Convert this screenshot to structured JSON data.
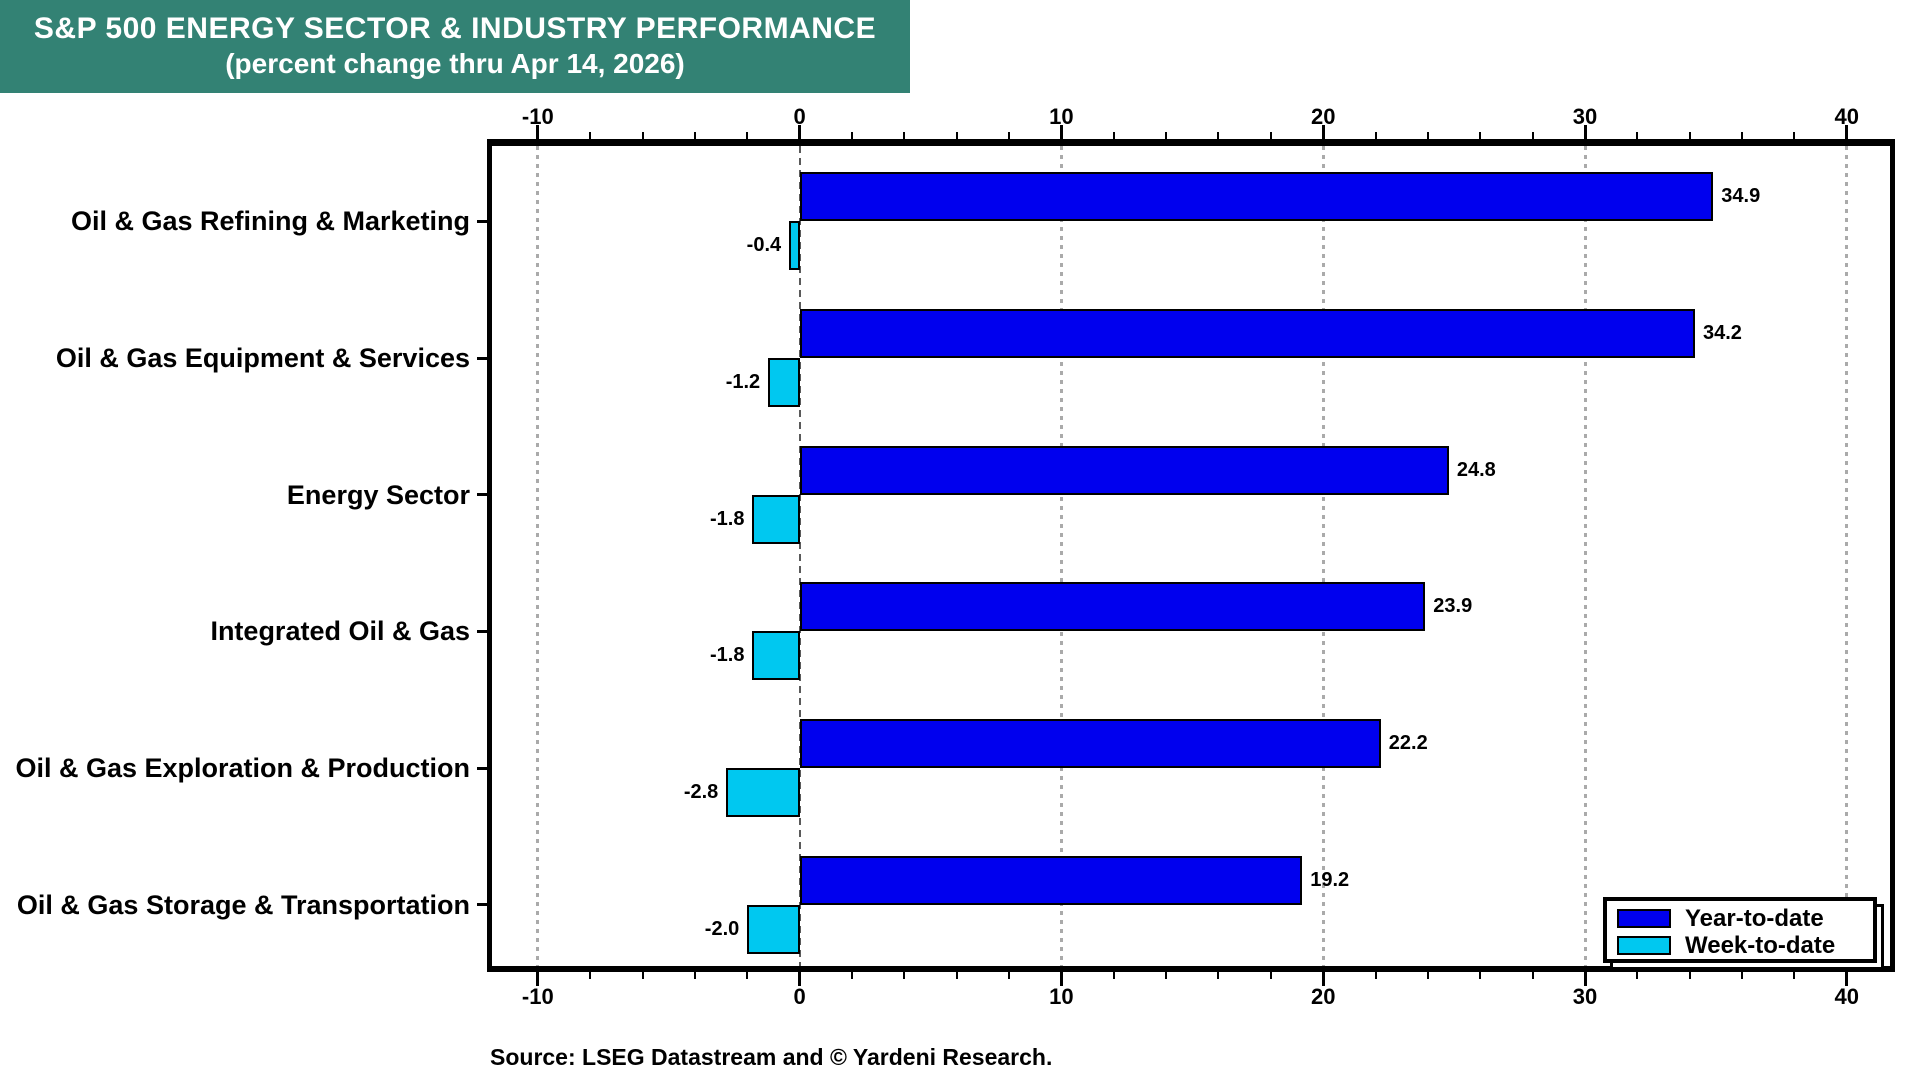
{
  "title": {
    "line1": "S&P 500 ENERGY SECTOR & INDUSTRY PERFORMANCE",
    "line2": "(percent change thru Apr 14, 2026)",
    "bg_color": "#338274",
    "text_color": "#ffffff"
  },
  "source_note": "Source: LSEG Datastream and © Yardeni Research.",
  "legend": {
    "position": "bottom-right-inside-plot",
    "items": [
      {
        "label": "Year-to-date",
        "color": "#0000EE"
      },
      {
        "label": "Week-to-date",
        "color": "#00C8F0"
      }
    ]
  },
  "chart_data": {
    "type": "bar",
    "orientation": "horizontal",
    "title": "S&P 500 ENERGY SECTOR & INDUSTRY PERFORMANCE (percent change thru Apr 14, 2026)",
    "categories": [
      "Oil & Gas Refining & Marketing",
      "Oil & Gas Equipment & Services",
      "Energy Sector",
      "Integrated Oil & Gas",
      "Oil & Gas Exploration & Production",
      "Oil & Gas Storage & Transportation"
    ],
    "series": [
      {
        "name": "Year-to-date",
        "color": "#0000EE",
        "values": [
          34.9,
          34.2,
          24.8,
          23.9,
          22.2,
          19.2
        ]
      },
      {
        "name": "Week-to-date",
        "color": "#00C8F0",
        "values": [
          -0.4,
          -1.2,
          -1.8,
          -1.8,
          -2.8,
          -2.0
        ]
      }
    ],
    "xlabel": "",
    "ylabel": "",
    "axis": {
      "min": -11.75,
      "max": 41.65,
      "major_ticks": [
        -10,
        0,
        10,
        20,
        30,
        40
      ],
      "minor_tick_step": 2,
      "gridlines": [
        -10,
        10,
        20,
        30,
        40
      ],
      "zero_line": 0,
      "grid_style": "dotted-gray",
      "tick_label_rows": [
        "top",
        "bottom"
      ]
    },
    "value_labels": "shown-at-bar-ends"
  }
}
